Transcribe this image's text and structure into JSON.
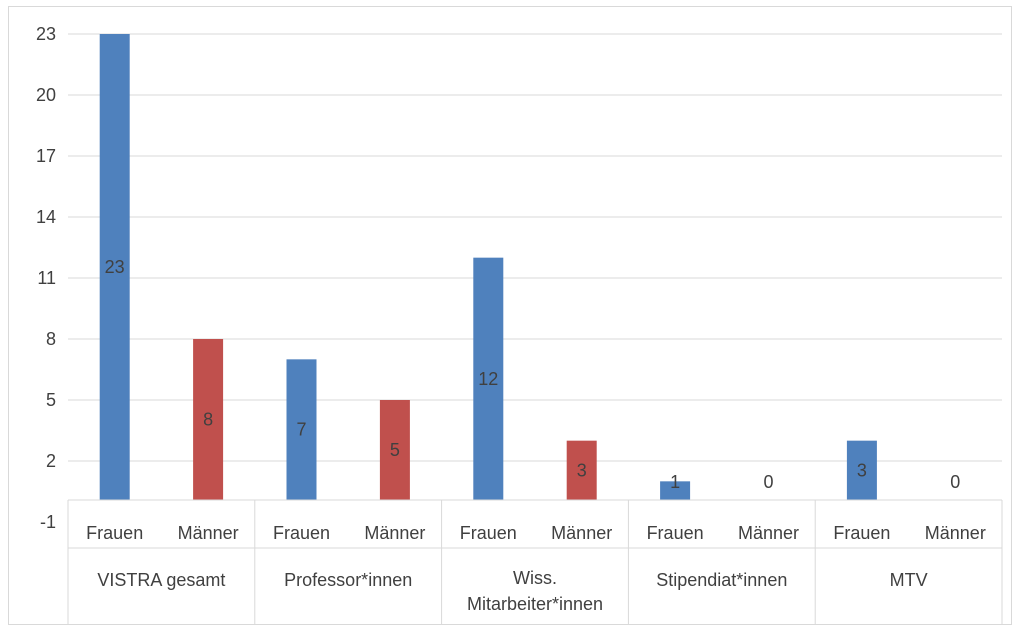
{
  "chart_data": {
    "type": "bar",
    "ylim": [
      -1,
      23
    ],
    "yticks": [
      "23",
      "20",
      "17",
      "14",
      "11",
      "8",
      "5",
      "2",
      "-1"
    ],
    "ytick_values": [
      23,
      20,
      17,
      14,
      11,
      8,
      5,
      2,
      -1
    ],
    "groups": [
      {
        "name": "VISTRA gesamt",
        "name_lines": [
          "VISTRA gesamt"
        ]
      },
      {
        "name": "Professor*innen",
        "name_lines": [
          "Professor*innen"
        ]
      },
      {
        "name": "Wiss. Mitarbeiter*innen",
        "name_lines": [
          "Wiss.",
          "Mitarbeiter*innen"
        ]
      },
      {
        "name": "Stipendiat*innen",
        "name_lines": [
          "Stipendiat*innen"
        ]
      },
      {
        "name": "MTV",
        "name_lines": [
          "MTV"
        ]
      }
    ],
    "bars": [
      {
        "group": 0,
        "category": "Frauen",
        "value": 23,
        "label": "23",
        "color": "#4f81bd"
      },
      {
        "group": 0,
        "category": "Männer",
        "value": 8,
        "label": "8",
        "color": "#c0504d"
      },
      {
        "group": 1,
        "category": "Frauen",
        "value": 7,
        "label": "7",
        "color": "#4f81bd"
      },
      {
        "group": 1,
        "category": "Männer",
        "value": 5,
        "label": "5",
        "color": "#c0504d"
      },
      {
        "group": 2,
        "category": "Frauen",
        "value": 12,
        "label": "12",
        "color": "#4f81bd"
      },
      {
        "group": 2,
        "category": "Männer",
        "value": 3,
        "label": "3",
        "color": "#c0504d"
      },
      {
        "group": 3,
        "category": "Frauen",
        "value": 1,
        "label": "1",
        "color": "#4f81bd"
      },
      {
        "group": 3,
        "category": "Männer",
        "value": 0,
        "label": "0",
        "color": "#c0504d"
      },
      {
        "group": 4,
        "category": "Frauen",
        "value": 3,
        "label": "3",
        "color": "#4f81bd"
      },
      {
        "group": 4,
        "category": "Männer",
        "value": 0,
        "label": "0",
        "color": "#c0504d"
      }
    ],
    "grid": true,
    "legend": "none",
    "colors": {
      "frauen": "#4f81bd",
      "maenner": "#c0504d",
      "grid": "#d9d9d9",
      "text": "#404040"
    }
  }
}
